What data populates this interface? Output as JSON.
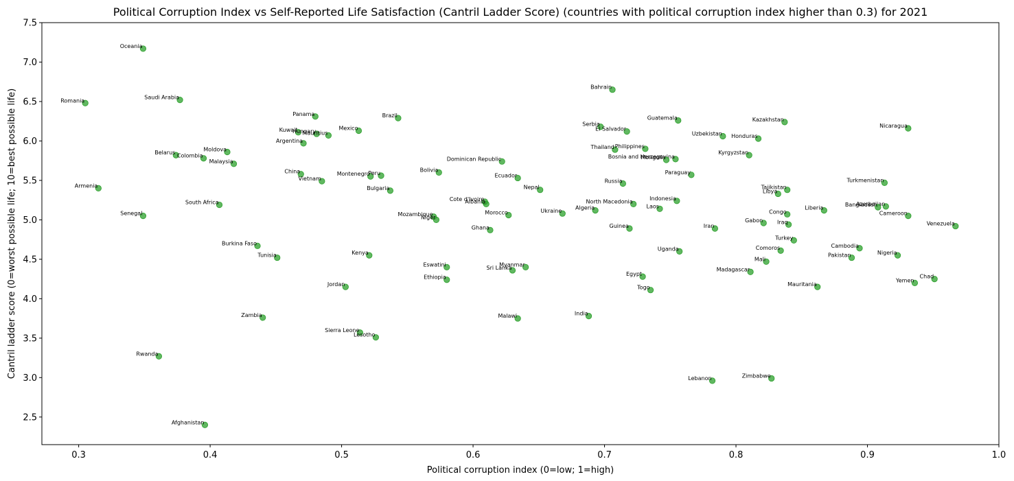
{
  "chart_data": {
    "type": "scatter",
    "title": "Political Corruption Index vs Self-Reported Life Satisfaction (Cantril Ladder Score) (countries with political corruption index higher than 0.3) for 2021",
    "xlabel": "Political corruption index (0=low; 1=high)",
    "ylabel": "Cantril ladder score (0=worst possible life; 10=best possible life)",
    "xlim": [
      0.272,
      1.0
    ],
    "ylim": [
      2.15,
      7.5
    ],
    "xticks": [
      "0.3",
      "0.4",
      "0.5",
      "0.6",
      "0.7",
      "0.8",
      "0.9",
      "1.0"
    ],
    "yticks": [
      "2.5",
      "3.0",
      "3.5",
      "4.0",
      "4.5",
      "5.0",
      "5.5",
      "6.0",
      "6.5",
      "7.0",
      "7.5"
    ],
    "grid": false,
    "marker_color": "#2ca02c",
    "points": [
      {
        "label": "Oceania",
        "x": 0.349,
        "y": 7.17
      },
      {
        "label": "Romania",
        "x": 0.305,
        "y": 6.48
      },
      {
        "label": "Saudi Arabia",
        "x": 0.377,
        "y": 6.52
      },
      {
        "label": "Armenia",
        "x": 0.315,
        "y": 5.4
      },
      {
        "label": "Senegal",
        "x": 0.349,
        "y": 5.05
      },
      {
        "label": "Belarus",
        "x": 0.374,
        "y": 5.82
      },
      {
        "label": "Colombia",
        "x": 0.395,
        "y": 5.78
      },
      {
        "label": "Moldova",
        "x": 0.413,
        "y": 5.86
      },
      {
        "label": "Malaysia",
        "x": 0.418,
        "y": 5.71
      },
      {
        "label": "South Africa",
        "x": 0.407,
        "y": 5.19
      },
      {
        "label": "Burkina Faso",
        "x": 0.436,
        "y": 4.67
      },
      {
        "label": "Tunisia",
        "x": 0.451,
        "y": 4.52
      },
      {
        "label": "Zambia",
        "x": 0.44,
        "y": 3.76
      },
      {
        "label": "Rwanda",
        "x": 0.361,
        "y": 3.27
      },
      {
        "label": "Afghanistan",
        "x": 0.396,
        "y": 2.4
      },
      {
        "label": "Panama",
        "x": 0.48,
        "y": 6.31
      },
      {
        "label": "Kuwait",
        "x": 0.467,
        "y": 6.11
      },
      {
        "label": "Hungary",
        "x": 0.481,
        "y": 6.09
      },
      {
        "label": "Mauritius",
        "x": 0.49,
        "y": 6.07
      },
      {
        "label": "Argentina",
        "x": 0.471,
        "y": 5.97
      },
      {
        "label": "Mexico",
        "x": 0.513,
        "y": 6.13
      },
      {
        "label": "China",
        "x": 0.469,
        "y": 5.58
      },
      {
        "label": "Vietnam",
        "x": 0.485,
        "y": 5.49
      },
      {
        "label": "Montenegro",
        "x": 0.522,
        "y": 5.55
      },
      {
        "label": "Peru",
        "x": 0.53,
        "y": 5.56
      },
      {
        "label": "Brazil",
        "x": 0.543,
        "y": 6.29
      },
      {
        "label": "Bulgaria",
        "x": 0.537,
        "y": 5.37
      },
      {
        "label": "Bolivia",
        "x": 0.574,
        "y": 5.6
      },
      {
        "label": "Kenya",
        "x": 0.521,
        "y": 4.55
      },
      {
        "label": "Jordan",
        "x": 0.503,
        "y": 4.15
      },
      {
        "label": "Sierra Leone",
        "x": 0.514,
        "y": 3.57
      },
      {
        "label": "Lesotho",
        "x": 0.526,
        "y": 3.51
      },
      {
        "label": "Mozambique",
        "x": 0.57,
        "y": 5.04
      },
      {
        "label": "Niger",
        "x": 0.572,
        "y": 5.0
      },
      {
        "label": "Cote d'Ivoire",
        "x": 0.609,
        "y": 5.23
      },
      {
        "label": "Albania",
        "x": 0.61,
        "y": 5.2
      },
      {
        "label": "Eswatini",
        "x": 0.58,
        "y": 4.4
      },
      {
        "label": "Ethiopia",
        "x": 0.58,
        "y": 4.24
      },
      {
        "label": "Ghana",
        "x": 0.613,
        "y": 4.87
      },
      {
        "label": "Dominican Republic",
        "x": 0.622,
        "y": 5.74
      },
      {
        "label": "Ecuador",
        "x": 0.634,
        "y": 5.53
      },
      {
        "label": "Morocco",
        "x": 0.627,
        "y": 5.06
      },
      {
        "label": "Myanmar",
        "x": 0.64,
        "y": 4.4
      },
      {
        "label": "Sri Lanka",
        "x": 0.63,
        "y": 4.36
      },
      {
        "label": "Malawi",
        "x": 0.634,
        "y": 3.75
      },
      {
        "label": "Nepal",
        "x": 0.651,
        "y": 5.38
      },
      {
        "label": "Ukraine",
        "x": 0.668,
        "y": 5.08
      },
      {
        "label": "Algeria",
        "x": 0.693,
        "y": 5.12
      },
      {
        "label": "India",
        "x": 0.688,
        "y": 3.78
      },
      {
        "label": "Bahrain",
        "x": 0.706,
        "y": 6.65
      },
      {
        "label": "Serbia",
        "x": 0.697,
        "y": 6.18
      },
      {
        "label": "El Salvador",
        "x": 0.717,
        "y": 6.12
      },
      {
        "label": "Thailand",
        "x": 0.708,
        "y": 5.89
      },
      {
        "label": "Philippines",
        "x": 0.731,
        "y": 5.9
      },
      {
        "label": "Bosnia and Herzegovina",
        "x": 0.754,
        "y": 5.77
      },
      {
        "label": "Mongolia",
        "x": 0.747,
        "y": 5.76
      },
      {
        "label": "Russia",
        "x": 0.714,
        "y": 5.46
      },
      {
        "label": "North Macedonia",
        "x": 0.722,
        "y": 5.2
      },
      {
        "label": "Indonesia",
        "x": 0.755,
        "y": 5.24
      },
      {
        "label": "Laos",
        "x": 0.742,
        "y": 5.14
      },
      {
        "label": "Guinea",
        "x": 0.719,
        "y": 4.89
      },
      {
        "label": "Guatemala",
        "x": 0.756,
        "y": 6.26
      },
      {
        "label": "Paraguay",
        "x": 0.766,
        "y": 5.57
      },
      {
        "label": "Uganda",
        "x": 0.757,
        "y": 4.6
      },
      {
        "label": "Egypt",
        "x": 0.729,
        "y": 4.28
      },
      {
        "label": "Togo",
        "x": 0.735,
        "y": 4.11
      },
      {
        "label": "Uzbekistan",
        "x": 0.79,
        "y": 6.06
      },
      {
        "label": "Honduras",
        "x": 0.817,
        "y": 6.03
      },
      {
        "label": "Kyrgyzstan",
        "x": 0.81,
        "y": 5.82
      },
      {
        "label": "Kazakhstan",
        "x": 0.837,
        "y": 6.24
      },
      {
        "label": "Iran",
        "x": 0.784,
        "y": 4.89
      },
      {
        "label": "Gabon",
        "x": 0.821,
        "y": 4.96
      },
      {
        "label": "Congo",
        "x": 0.839,
        "y": 5.07
      },
      {
        "label": "Iraq",
        "x": 0.84,
        "y": 4.94
      },
      {
        "label": "Tajikistan",
        "x": 0.839,
        "y": 5.38
      },
      {
        "label": "Libya",
        "x": 0.832,
        "y": 5.33
      },
      {
        "label": "Turkey",
        "x": 0.844,
        "y": 4.74
      },
      {
        "label": "Comoros",
        "x": 0.834,
        "y": 4.61
      },
      {
        "label": "Mali",
        "x": 0.823,
        "y": 4.47
      },
      {
        "label": "Madagascar",
        "x": 0.811,
        "y": 4.34
      },
      {
        "label": "Lebanon",
        "x": 0.782,
        "y": 2.96
      },
      {
        "label": "Zimbabwe",
        "x": 0.827,
        "y": 2.99
      },
      {
        "label": "Liberia",
        "x": 0.867,
        "y": 5.12
      },
      {
        "label": "Mauritania",
        "x": 0.862,
        "y": 4.15
      },
      {
        "label": "Nicaragua",
        "x": 0.931,
        "y": 6.16
      },
      {
        "label": "Turkmenistan",
        "x": 0.913,
        "y": 5.47
      },
      {
        "label": "Azerbaijan",
        "x": 0.914,
        "y": 5.17
      },
      {
        "label": "Bangladesh",
        "x": 0.908,
        "y": 5.16
      },
      {
        "label": "Cameroon",
        "x": 0.931,
        "y": 5.05
      },
      {
        "label": "Venezuela",
        "x": 0.967,
        "y": 4.92
      },
      {
        "label": "Cambodia",
        "x": 0.894,
        "y": 4.64
      },
      {
        "label": "Pakistan",
        "x": 0.888,
        "y": 4.52
      },
      {
        "label": "Nigeria",
        "x": 0.923,
        "y": 4.55
      },
      {
        "label": "Chad",
        "x": 0.951,
        "y": 4.25
      },
      {
        "label": "Yemen",
        "x": 0.936,
        "y": 4.2
      }
    ]
  }
}
